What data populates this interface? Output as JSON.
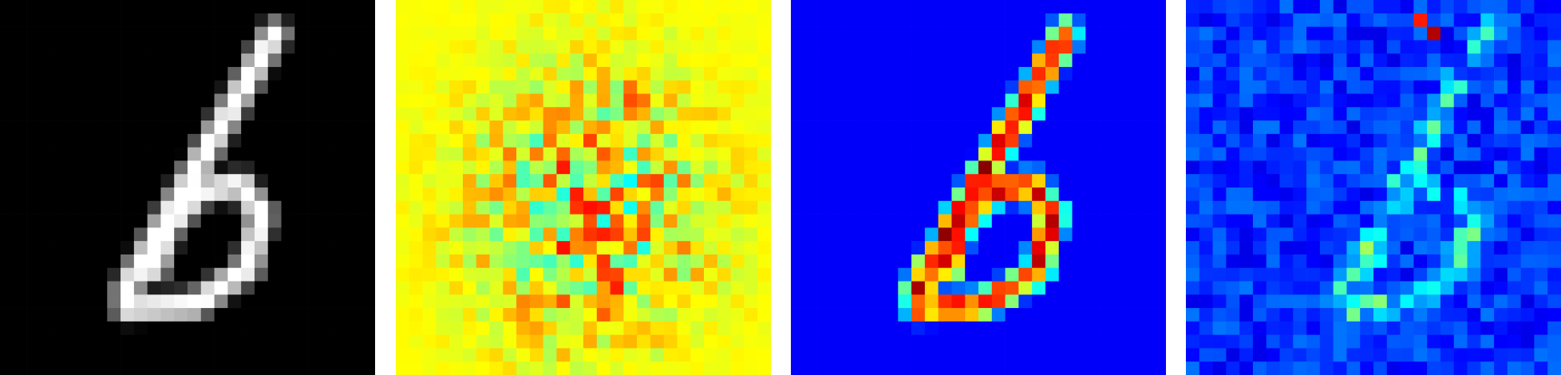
{
  "panels": [
    {
      "id": "input-digit",
      "colormap": "gray",
      "background": "#000000"
    },
    {
      "id": "map-1",
      "colormap": "jet",
      "background": "#b7ff40"
    },
    {
      "id": "map-2",
      "colormap": "jet",
      "background": "#0000a8"
    },
    {
      "id": "map-3",
      "colormap": "jet",
      "background": "#0000a8"
    }
  ]
}
